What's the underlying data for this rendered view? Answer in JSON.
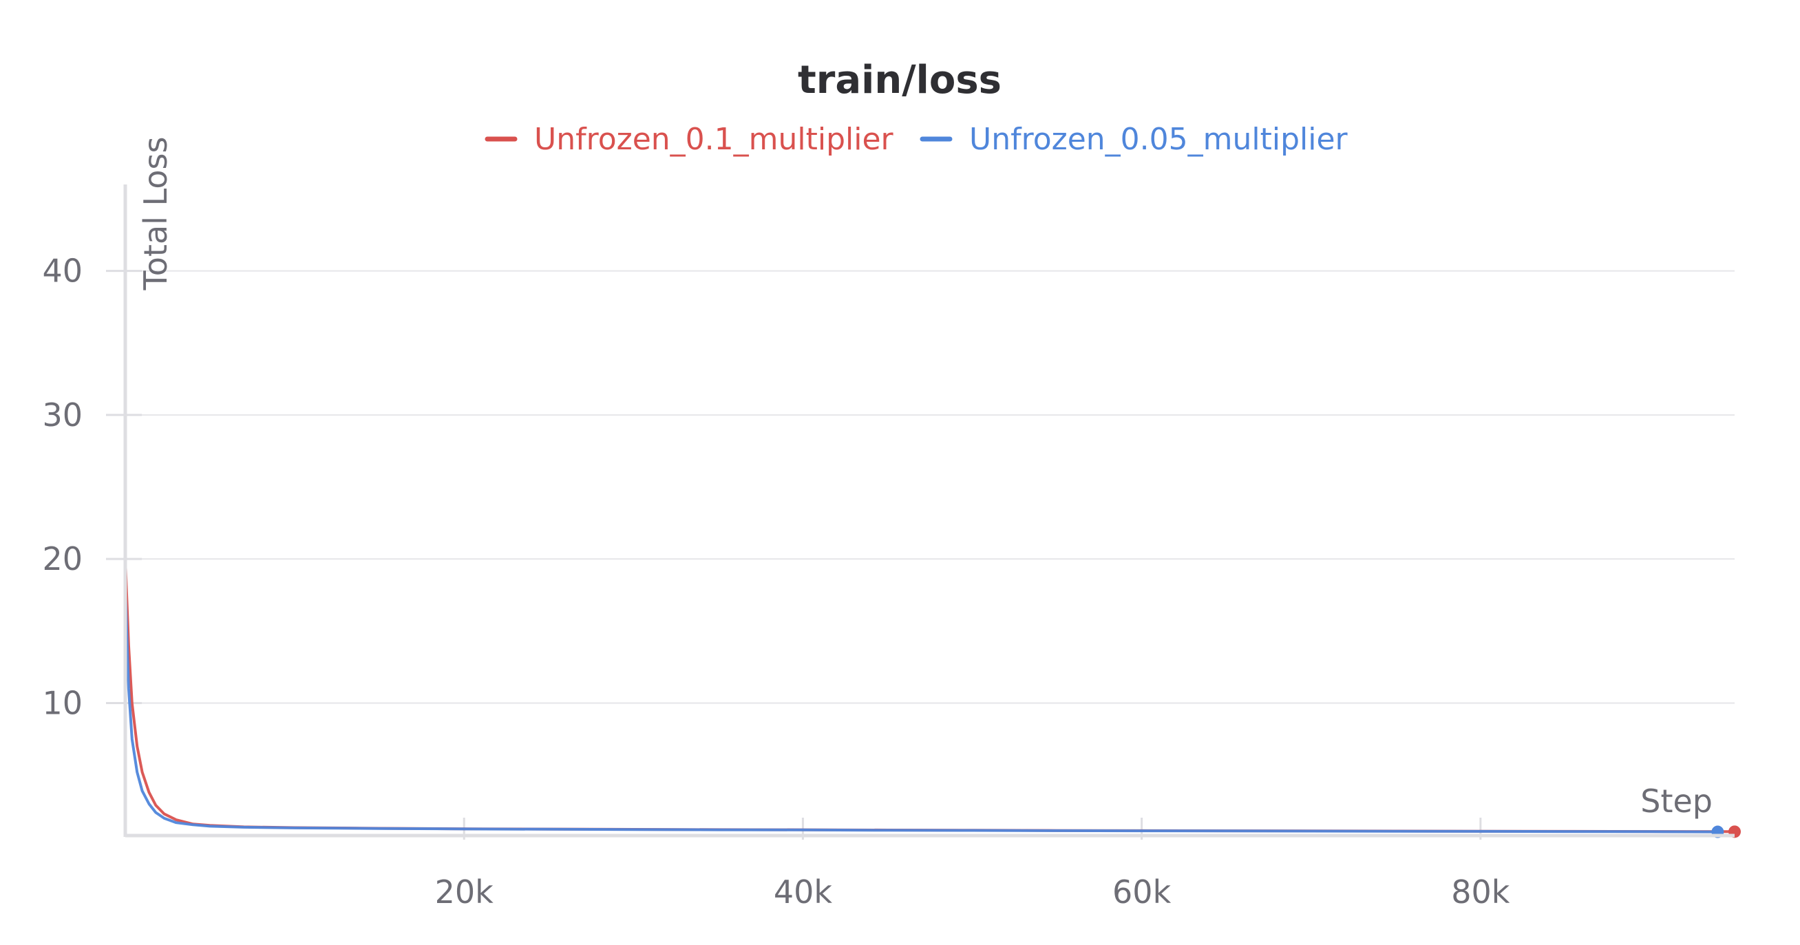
{
  "chart_data": {
    "type": "line",
    "title": "train/loss",
    "xlabel": "Step",
    "ylabel": "Total Loss",
    "xlim": [
      0,
      95000
    ],
    "ylim": [
      0.8,
      46
    ],
    "xticks": [
      20000,
      40000,
      60000,
      80000
    ],
    "xtick_labels": [
      "20k",
      "40k",
      "60k",
      "80k"
    ],
    "yticks": [
      10,
      20,
      30,
      40
    ],
    "ytick_labels": [
      "10",
      "20",
      "30",
      "40"
    ],
    "grid": true,
    "legend_position": "top-center",
    "series": [
      {
        "name": "Unfrozen_0.1_multiplier",
        "color": "#d9514e",
        "points": [
          [
            0,
            20
          ],
          [
            200,
            14
          ],
          [
            400,
            10
          ],
          [
            700,
            7
          ],
          [
            1000,
            5.2
          ],
          [
            1400,
            3.8
          ],
          [
            1800,
            2.9
          ],
          [
            2300,
            2.3
          ],
          [
            3000,
            1.9
          ],
          [
            4000,
            1.6
          ],
          [
            5000,
            1.5
          ],
          [
            7000,
            1.4
          ],
          [
            10000,
            1.35
          ],
          [
            15000,
            1.3
          ],
          [
            20000,
            1.27
          ],
          [
            25000,
            1.25
          ],
          [
            30000,
            1.23
          ],
          [
            35000,
            1.21
          ],
          [
            40000,
            1.2
          ],
          [
            45000,
            1.18
          ],
          [
            50000,
            1.17
          ],
          [
            55000,
            1.15
          ],
          [
            60000,
            1.14
          ],
          [
            65000,
            1.13
          ],
          [
            70000,
            1.12
          ],
          [
            75000,
            1.11
          ],
          [
            80000,
            1.1
          ],
          [
            85000,
            1.09
          ],
          [
            90000,
            1.08
          ],
          [
            95000,
            1.07
          ]
        ]
      },
      {
        "name": "Unfrozen_0.05_multiplier",
        "color": "#4f86db",
        "points": [
          [
            0,
            18
          ],
          [
            200,
            11
          ],
          [
            400,
            7.5
          ],
          [
            700,
            5.2
          ],
          [
            1000,
            3.9
          ],
          [
            1400,
            3.0
          ],
          [
            1800,
            2.4
          ],
          [
            2300,
            2.0
          ],
          [
            3000,
            1.7
          ],
          [
            4000,
            1.55
          ],
          [
            5000,
            1.45
          ],
          [
            7000,
            1.38
          ],
          [
            10000,
            1.33
          ],
          [
            15000,
            1.29
          ],
          [
            20000,
            1.26
          ],
          [
            25000,
            1.24
          ],
          [
            30000,
            1.22
          ],
          [
            35000,
            1.2
          ],
          [
            40000,
            1.19
          ],
          [
            45000,
            1.17
          ],
          [
            50000,
            1.16
          ],
          [
            55000,
            1.14
          ],
          [
            60000,
            1.13
          ],
          [
            65000,
            1.12
          ],
          [
            70000,
            1.11
          ],
          [
            75000,
            1.1
          ],
          [
            80000,
            1.09
          ],
          [
            85000,
            1.08
          ],
          [
            90000,
            1.07
          ],
          [
            94000,
            1.06
          ]
        ]
      }
    ]
  }
}
